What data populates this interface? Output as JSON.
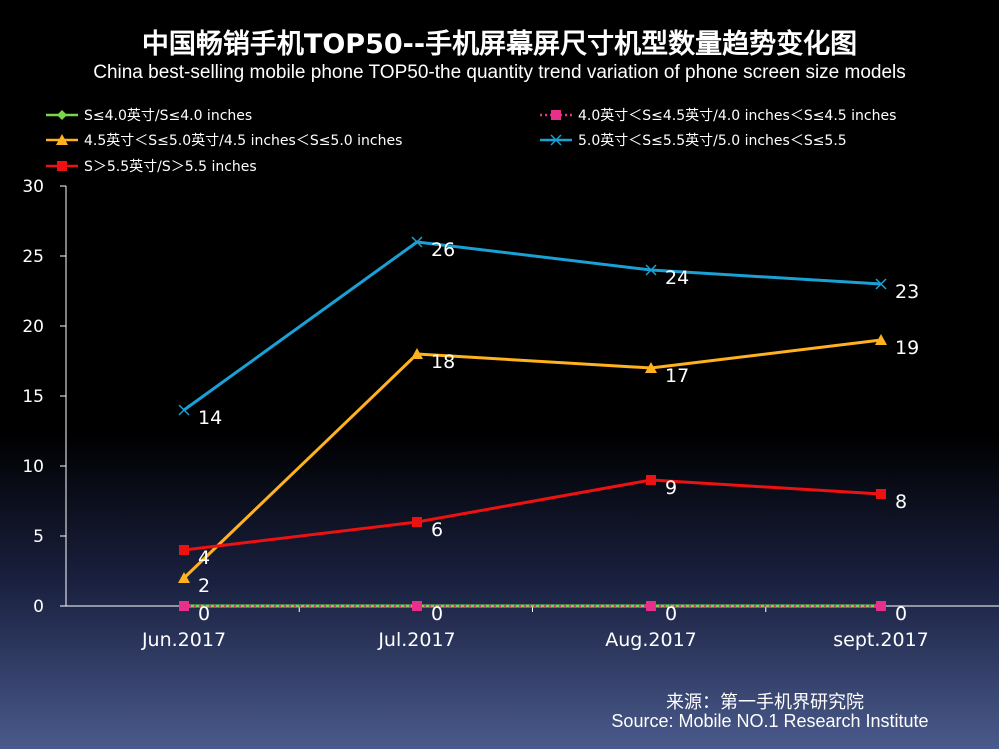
{
  "header": {
    "title_cn": "中国畅销手机TOP50--手机屏幕屏尺寸机型数量趋势变化图",
    "title_en": "China best-selling mobile phone TOP50-the quantity trend variation of phone screen size models"
  },
  "source": {
    "cn": "来源：第一手机界研究院",
    "en": "Source: Mobile NO.1 Research Institute"
  },
  "chart_data": {
    "type": "line",
    "title": "中国畅销手机TOP50--手机屏幕屏尺寸机型数量趋势变化图",
    "subtitle": "China best-selling mobile phone TOP50-the quantity trend variation of phone screen size models",
    "xlabel": "",
    "ylabel": "",
    "categories": [
      "Jun.2017",
      "Jul.2017",
      "Aug.2017",
      "sept.2017"
    ],
    "ylim": [
      0,
      30
    ],
    "yticks": [
      "0",
      "5",
      "10",
      "15",
      "20",
      "25",
      "30"
    ],
    "grid": false,
    "legend_position": "top",
    "series": [
      {
        "name": "S≤4.0英寸/S≤4.0 inches",
        "values": [
          0,
          0,
          0,
          0
        ],
        "color": "#7cd44a",
        "marker": "diamond",
        "dash": "solid",
        "labels": []
      },
      {
        "name": "4.0英寸＜S≤4.5英寸/4.0 inches＜S≤4.5 inches",
        "values": [
          0,
          0,
          0,
          0
        ],
        "color": "#e8308a",
        "marker": "square",
        "dash": "dotted",
        "labels": [
          "0",
          "0",
          "0",
          "0"
        ]
      },
      {
        "name": "4.5英寸＜S≤5.0英寸/4.5 inches＜S≤5.0 inches",
        "values": [
          2,
          18,
          17,
          19
        ],
        "color": "#ffb21e",
        "marker": "triangle",
        "dash": "solid",
        "labels": [
          "2",
          "18",
          "17",
          "19"
        ]
      },
      {
        "name": "5.0英寸＜S≤5.5英寸/5.0 inches＜S≤5.5",
        "values": [
          14,
          26,
          24,
          23
        ],
        "color": "#1aa0d4",
        "marker": "x",
        "dash": "solid",
        "labels": [
          "14",
          "26",
          "24",
          "23"
        ]
      },
      {
        "name": "S＞5.5英寸/S＞5.5 inches",
        "values": [
          4,
          6,
          9,
          8
        ],
        "color": "#ee1111",
        "marker": "square",
        "dash": "solid",
        "labels": [
          "4",
          "6",
          "9",
          "8"
        ]
      }
    ]
  }
}
